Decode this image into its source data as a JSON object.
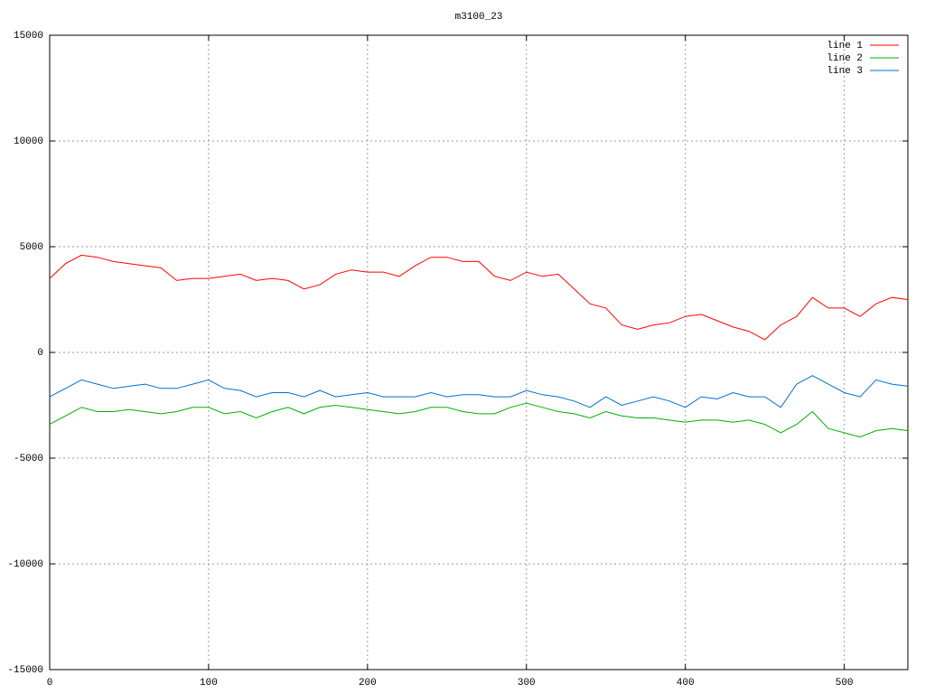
{
  "chart_data": {
    "type": "line",
    "title": "m3100_23",
    "x": [
      0,
      10,
      20,
      30,
      40,
      50,
      60,
      70,
      80,
      90,
      100,
      110,
      120,
      130,
      140,
      150,
      160,
      170,
      180,
      190,
      200,
      210,
      220,
      230,
      240,
      250,
      260,
      270,
      280,
      290,
      300,
      310,
      320,
      330,
      340,
      350,
      360,
      370,
      380,
      390,
      400,
      410,
      420,
      430,
      440,
      450,
      460,
      470,
      480,
      490,
      500,
      510,
      520,
      530,
      540
    ],
    "series": [
      {
        "name": "line 1",
        "color": "#ff0000",
        "values": [
          3500,
          4200,
          4600,
          4500,
          4300,
          4200,
          4100,
          4000,
          3400,
          3500,
          3500,
          3600,
          3700,
          3400,
          3500,
          3400,
          3000,
          3200,
          3700,
          3900,
          3800,
          3800,
          3600,
          4100,
          4500,
          4500,
          4300,
          4300,
          3600,
          3400,
          3800,
          3600,
          3700,
          3000,
          2300,
          2100,
          1300,
          1100,
          1300,
          1400,
          1700,
          1800,
          1500,
          1200,
          1000,
          600,
          1300,
          1700,
          2600,
          2100,
          2100,
          1700,
          2300,
          2600,
          2500
        ]
      },
      {
        "name": "line 2",
        "color": "#00b000",
        "values": [
          -3400,
          -3000,
          -2600,
          -2800,
          -2800,
          -2700,
          -2800,
          -2900,
          -2800,
          -2600,
          -2600,
          -2900,
          -2800,
          -3100,
          -2800,
          -2600,
          -2900,
          -2600,
          -2500,
          -2600,
          -2700,
          -2800,
          -2900,
          -2800,
          -2600,
          -2600,
          -2800,
          -2900,
          -2900,
          -2600,
          -2400,
          -2600,
          -2800,
          -2900,
          -3100,
          -2800,
          -3000,
          -3100,
          -3100,
          -3200,
          -3300,
          -3200,
          -3200,
          -3300,
          -3200,
          -3400,
          -3800,
          -3400,
          -2800,
          -3600,
          -3800,
          -4000,
          -3700,
          -3600,
          -3700
        ]
      },
      {
        "name": "line 3",
        "color": "#0070d0",
        "values": [
          -2100,
          -1700,
          -1300,
          -1500,
          -1700,
          -1600,
          -1500,
          -1700,
          -1700,
          -1500,
          -1300,
          -1700,
          -1800,
          -2100,
          -1900,
          -1900,
          -2100,
          -1800,
          -2100,
          -2000,
          -1900,
          -2100,
          -2100,
          -2100,
          -1900,
          -2100,
          -2000,
          -2000,
          -2100,
          -2100,
          -1800,
          -2000,
          -2100,
          -2300,
          -2600,
          -2100,
          -2500,
          -2300,
          -2100,
          -2300,
          -2600,
          -2100,
          -2200,
          -1900,
          -2100,
          -2100,
          -2600,
          -1500,
          -1100,
          -1500,
          -1900,
          -2100,
          -1300,
          -1500,
          -1600
        ]
      }
    ],
    "xlim": [
      0,
      540
    ],
    "xticks": [
      0,
      100,
      200,
      300,
      400,
      500
    ],
    "ylim": [
      -15000,
      15000
    ],
    "yticks": [
      -15000,
      -10000,
      -5000,
      0,
      5000,
      10000,
      15000
    ],
    "grid": true,
    "legend": "top-right"
  }
}
